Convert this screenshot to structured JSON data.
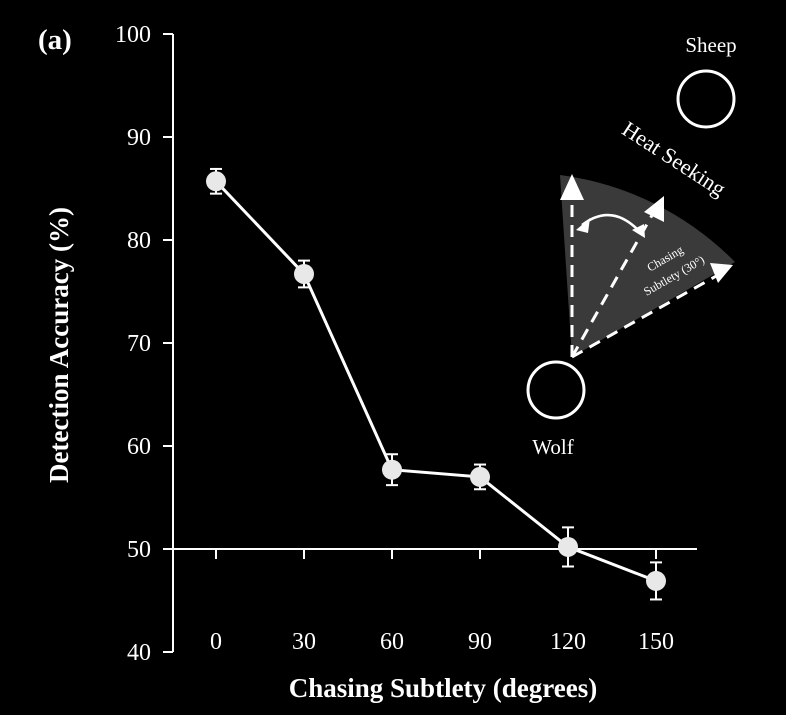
{
  "panel_label": "(a)",
  "chart_data": {
    "type": "line",
    "xlabel": "Chasing Subtlety (degrees)",
    "ylabel": "Detection Accuracy (%)",
    "categories": [
      "0",
      "30",
      "60",
      "90",
      "120",
      "150"
    ],
    "x": [
      0,
      30,
      60,
      90,
      120,
      150
    ],
    "values": [
      85.7,
      76.7,
      57.7,
      57.0,
      50.2,
      46.9
    ],
    "error": [
      1.2,
      1.3,
      1.5,
      1.2,
      1.9,
      1.8
    ],
    "ylim": [
      40,
      100
    ],
    "yticks": [
      40,
      50,
      60,
      70,
      80,
      90,
      100
    ],
    "reference_line": 50,
    "grid": false,
    "colors": {
      "background": "#000000",
      "foreground": "#ffffff",
      "marker": "#e8e8e8",
      "wedge": "#3a3a3a"
    }
  },
  "inset": {
    "sheep_label": "Sheep",
    "wolf_label": "Wolf",
    "heat_seeking_label": "Heat Seeking",
    "subtlety_label_line1": "Chasing",
    "subtlety_label_line2": "Subtlety (30°)"
  }
}
